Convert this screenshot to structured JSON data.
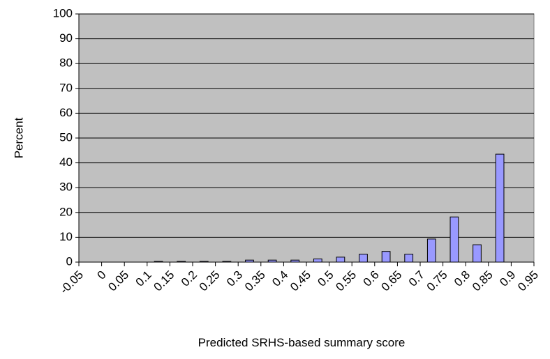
{
  "chart_data": {
    "type": "histogram",
    "x_label": "Predicted SRHS-based summary score",
    "y_label": "Percent",
    "bins": [
      -0.05,
      0,
      0.05,
      0.1,
      0.15,
      0.2,
      0.25,
      0.3,
      0.35,
      0.4,
      0.45,
      0.5,
      0.55,
      0.6,
      0.65,
      0.7,
      0.75,
      0.8,
      0.85,
      0.9,
      0.95
    ],
    "values": [
      0,
      0,
      0,
      0.3,
      0.3,
      0.3,
      0.3,
      0.8,
      0.8,
      0.8,
      1.3,
      2,
      3.2,
      4.3,
      3.2,
      9.3,
      18.2,
      7,
      43.5,
      0
    ],
    "color": "#9999ff",
    "ylim": [
      0,
      100
    ],
    "yticks": [
      0,
      10,
      20,
      30,
      40,
      50,
      60,
      70,
      80,
      90,
      100
    ],
    "grid": true
  }
}
